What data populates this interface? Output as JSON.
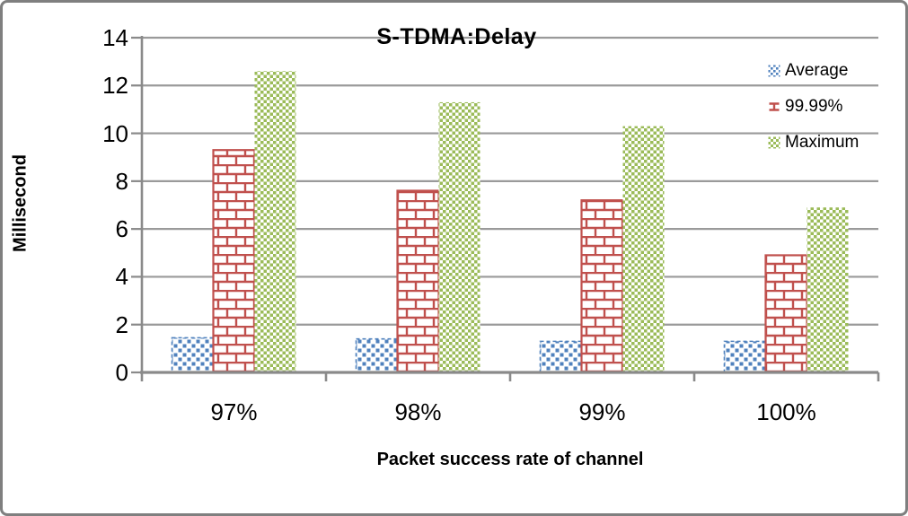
{
  "figure": {
    "background": "#FFFFFF",
    "border_color": "#7F7F7F"
  },
  "chart_data": {
    "type": "bar",
    "title": "S-TDMA:Delay",
    "xlabel": "Packet success rate of channel",
    "ylabel": "Millisecond",
    "categories": [
      "97%",
      "98%",
      "99%",
      "100%"
    ],
    "series": [
      {
        "name": "Average",
        "color": "#4F81BD",
        "pattern": "dotted",
        "values": [
          1.45,
          1.4,
          1.3,
          1.3
        ]
      },
      {
        "name": "99.99%",
        "color": "#C0504D",
        "pattern": "brick",
        "values": [
          9.3,
          7.6,
          7.2,
          4.9
        ]
      },
      {
        "name": "Maximum",
        "color": "#9BBB59",
        "pattern": "checker",
        "values": [
          12.6,
          11.3,
          10.3,
          6.9
        ]
      }
    ],
    "ylim": [
      0,
      14
    ],
    "yticks": [
      0,
      2,
      4,
      6,
      8,
      10,
      12,
      14
    ],
    "grid": true,
    "legend_position": "right-top",
    "grid_color": "#9A9A9A",
    "axis_color": "#8A8A8A",
    "text_color": "#000000"
  }
}
